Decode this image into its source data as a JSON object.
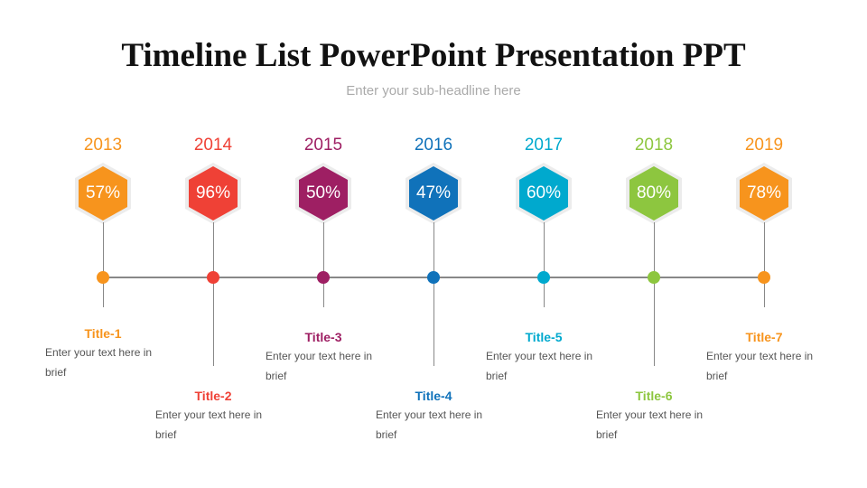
{
  "title": "Timeline List PowerPoint Presentation PPT",
  "subtitle": "Enter your sub-headline here",
  "items": [
    {
      "year": "2013",
      "percent": "57%",
      "title": "Title-1",
      "text": "Enter your text here in brief",
      "color": "#F7941D"
    },
    {
      "year": "2014",
      "percent": "96%",
      "title": "Title-2",
      "text": "Enter your text here in brief",
      "color": "#EF4136"
    },
    {
      "year": "2015",
      "percent": "50%",
      "title": "Title-3",
      "text": "Enter your text here in brief",
      "color": "#9E1F63"
    },
    {
      "year": "2016",
      "percent": "47%",
      "title": "Title-4",
      "text": "Enter your text here in brief",
      "color": "#1072BA"
    },
    {
      "year": "2017",
      "percent": "60%",
      "title": "Title-5",
      "text": "Enter your text here in brief",
      "color": "#00A9CE"
    },
    {
      "year": "2018",
      "percent": "80%",
      "title": "Title-6",
      "text": "Enter your text here in brief",
      "color": "#8DC63F"
    },
    {
      "year": "2019",
      "percent": "78%",
      "title": "Title-7",
      "text": "Enter your text here in brief",
      "color": "#F7941D"
    }
  ]
}
